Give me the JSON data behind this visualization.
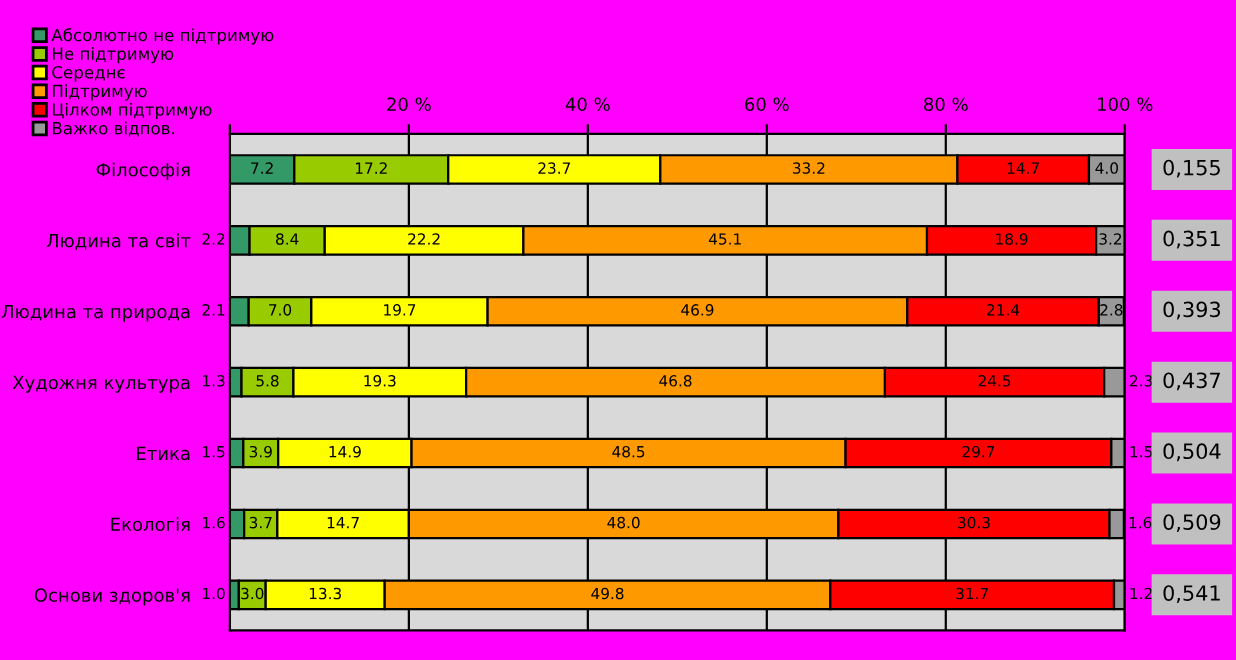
{
  "chart_data": {
    "type": "bar",
    "orientation": "horizontal",
    "stacked": true,
    "legend": "top left",
    "grid": "x",
    "categories": [
      "Філософія",
      "Людина та світ",
      "Людина та природа",
      "Художня культура",
      "Етика",
      "Екологія",
      "Основи здоров'я"
    ],
    "series": [
      {
        "name": "Абсолютно не підтримую",
        "color": "#339966",
        "values": [
          7.2,
          2.2,
          2.1,
          1.3,
          1.5,
          1.6,
          1.0
        ],
        "value_labels": [
          "7.2",
          "2.2",
          "2.1",
          "1.3",
          "1.5",
          "1.6",
          "1.0"
        ]
      },
      {
        "name": "Не підтримую",
        "color": "#99cc00",
        "values": [
          17.2,
          8.4,
          7.0,
          5.8,
          3.9,
          3.7,
          3.0
        ],
        "value_labels": [
          "17.2",
          "8.4",
          "7.0",
          "5.8",
          "3.9",
          "3.7",
          "3.0"
        ]
      },
      {
        "name": "Середнє",
        "color": "#ffff00",
        "values": [
          23.7,
          22.2,
          19.7,
          19.3,
          14.9,
          14.7,
          13.3
        ],
        "value_labels": [
          "23.7",
          "22.2",
          "19.7",
          "19.3",
          "14.9",
          "14.7",
          "13.3"
        ]
      },
      {
        "name": "Підтримую",
        "color": "#ff9900",
        "values": [
          33.2,
          45.1,
          46.9,
          46.8,
          48.5,
          48.0,
          49.8
        ],
        "value_labels": [
          "33.2",
          "45.1",
          "46.9",
          "46.8",
          "48.5",
          "48.0",
          "49.8"
        ]
      },
      {
        "name": "Цілком підтримую",
        "color": "#ff0000",
        "values": [
          14.7,
          18.9,
          21.4,
          24.5,
          29.7,
          30.3,
          31.7
        ],
        "value_labels": [
          "14.7",
          "18.9",
          "21.4",
          "24.5",
          "29.7",
          "30.3",
          "31.7"
        ]
      },
      {
        "name": "Важко відпов.",
        "color": "#999999",
        "values": [
          4.0,
          3.2,
          2.8,
          2.3,
          1.5,
          1.6,
          1.2
        ],
        "value_labels": [
          "4.0",
          "3.2",
          "2.8",
          "2.3",
          "1.5",
          "1.6",
          "1.2"
        ]
      }
    ],
    "xlim": [
      0,
      100
    ],
    "xticks": [
      {
        "value": 0,
        "label": null
      },
      {
        "value": 20,
        "label": "20 %"
      },
      {
        "value": 40,
        "label": "40 %"
      },
      {
        "value": 60,
        "label": "60 %"
      },
      {
        "value": 80,
        "label": "80 %"
      },
      {
        "value": 100,
        "label": "100 %"
      }
    ],
    "annotations": [
      "0,155",
      "0,351",
      "0,393",
      "0,437",
      "0,504",
      "0,509",
      "0,541"
    ]
  }
}
